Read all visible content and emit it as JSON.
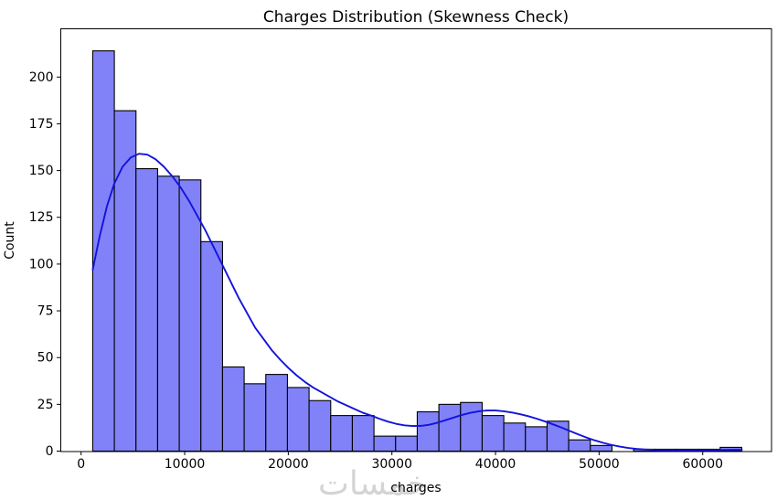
{
  "figure": {
    "title": "Charges Distribution (Skewness Check)",
    "xlabel": "charges",
    "ylabel": "Count",
    "watermark": "خمسات"
  },
  "chart_data": {
    "type": "bar",
    "subtype": "histogram_with_kde",
    "title": "Charges Distribution (Skewness Check)",
    "xlabel": "charges",
    "ylabel": "Count",
    "total_count": 1338,
    "bin_start": 1121.87,
    "bin_width": 2088.28,
    "bin_counts": [
      214,
      182,
      151,
      147,
      145,
      112,
      45,
      36,
      41,
      34,
      27,
      19,
      19,
      8,
      8,
      21,
      25,
      26,
      19,
      15,
      13,
      16,
      6,
      3,
      0,
      1,
      1,
      1,
      1,
      2
    ],
    "kde_series_name": "kde",
    "kde_points": [
      [
        1122,
        97
      ],
      [
        1800,
        115
      ],
      [
        2500,
        131
      ],
      [
        3200,
        143
      ],
      [
        4000,
        152
      ],
      [
        4800,
        157
      ],
      [
        5600,
        159
      ],
      [
        6400,
        158.5
      ],
      [
        7200,
        156
      ],
      [
        8000,
        152
      ],
      [
        8800,
        147
      ],
      [
        9600,
        141
      ],
      [
        10400,
        134
      ],
      [
        11200,
        126
      ],
      [
        12000,
        118
      ],
      [
        12800,
        109
      ],
      [
        13600,
        100
      ],
      [
        14400,
        91
      ],
      [
        15200,
        82
      ],
      [
        16000,
        74
      ],
      [
        16800,
        66
      ],
      [
        17600,
        60
      ],
      [
        18400,
        54
      ],
      [
        19200,
        49
      ],
      [
        20000,
        44.5
      ],
      [
        20800,
        40.5
      ],
      [
        21600,
        37
      ],
      [
        22400,
        34
      ],
      [
        23200,
        31.5
      ],
      [
        24000,
        29
      ],
      [
        24800,
        26.5
      ],
      [
        25600,
        24.5
      ],
      [
        26400,
        22.5
      ],
      [
        27200,
        20.5
      ],
      [
        28000,
        19
      ],
      [
        28800,
        17.3
      ],
      [
        29600,
        15.8
      ],
      [
        30400,
        14.6
      ],
      [
        31200,
        13.8
      ],
      [
        32000,
        13.4
      ],
      [
        32800,
        13.5
      ],
      [
        33600,
        14.1
      ],
      [
        34400,
        15.2
      ],
      [
        35200,
        16.6
      ],
      [
        36000,
        18
      ],
      [
        36800,
        19.4
      ],
      [
        37600,
        20.5
      ],
      [
        38400,
        21.3
      ],
      [
        39200,
        21.7
      ],
      [
        40000,
        21.7
      ],
      [
        40800,
        21.3
      ],
      [
        41600,
        20.6
      ],
      [
        42400,
        19.7
      ],
      [
        43200,
        18.6
      ],
      [
        44000,
        17.3
      ],
      [
        44800,
        15.8
      ],
      [
        45600,
        14.2
      ],
      [
        46400,
        12.5
      ],
      [
        47200,
        10.7
      ],
      [
        48000,
        8.9
      ],
      [
        48800,
        7.2
      ],
      [
        49600,
        5.7
      ],
      [
        50400,
        4.4
      ],
      [
        51200,
        3.3
      ],
      [
        52000,
        2.4
      ],
      [
        52800,
        1.7
      ],
      [
        53600,
        1.2
      ],
      [
        54400,
        0.9
      ],
      [
        55200,
        0.7
      ],
      [
        56000,
        0.6
      ],
      [
        57000,
        0.5
      ],
      [
        58000,
        0.5
      ],
      [
        59000,
        0.5
      ],
      [
        60000,
        0.5
      ],
      [
        61000,
        0.55
      ],
      [
        62000,
        0.65
      ],
      [
        63000,
        0.72
      ],
      [
        63770,
        0.75
      ]
    ],
    "x_ticks": [
      0,
      10000,
      20000,
      30000,
      40000,
      50000,
      60000
    ],
    "y_ticks": [
      0,
      25,
      50,
      75,
      100,
      125,
      150,
      175,
      200
    ],
    "xlim": [
      -1959,
      66639
    ],
    "ylim": [
      0,
      225.8
    ],
    "grid": false,
    "legend": null,
    "colors": {
      "bar_fill": "#8182f8",
      "bar_edge": "#000000",
      "kde_line": "#1313dc",
      "axis": "#000000",
      "text": "#000000",
      "watermark": "#cdcdcd"
    }
  }
}
